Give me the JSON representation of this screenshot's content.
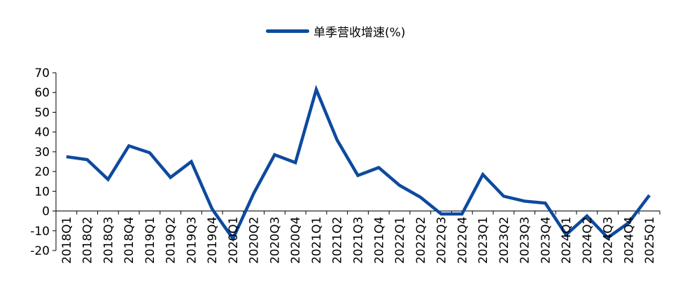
{
  "chart_data": {
    "type": "line",
    "categories": [
      "2018Q1",
      "2018Q2",
      "2018Q3",
      "2018Q4",
      "2019Q1",
      "2019Q2",
      "2019Q3",
      "2019Q4",
      "2020Q1",
      "2020Q2",
      "2020Q3",
      "2020Q4",
      "2021Q1",
      "2021Q2",
      "2021Q3",
      "2021Q4",
      "2022Q1",
      "2022Q2",
      "2022Q3",
      "2022Q4",
      "2023Q1",
      "2023Q2",
      "2023Q3",
      "2023Q4",
      "2024Q1",
      "2024Q2",
      "2024Q3",
      "2024Q4",
      "2025Q1"
    ],
    "series": [
      {
        "name": "单季营收增速(%)",
        "color": "#0D4A9E",
        "values": [
          27.5,
          26,
          16,
          33,
          29.5,
          17,
          25,
          1,
          -14,
          9,
          28.5,
          24.5,
          61.5,
          36,
          18,
          22,
          13,
          7,
          -1.5,
          -1.5,
          18.5,
          7.5,
          5,
          4,
          -12,
          -2.5,
          -13.5,
          -6,
          8
        ]
      }
    ],
    "ylim": [
      -20,
      70
    ],
    "yticks": [
      -20,
      -10,
      0,
      10,
      20,
      30,
      40,
      50,
      60,
      70
    ],
    "grid": false,
    "legend_position": "top-center"
  }
}
